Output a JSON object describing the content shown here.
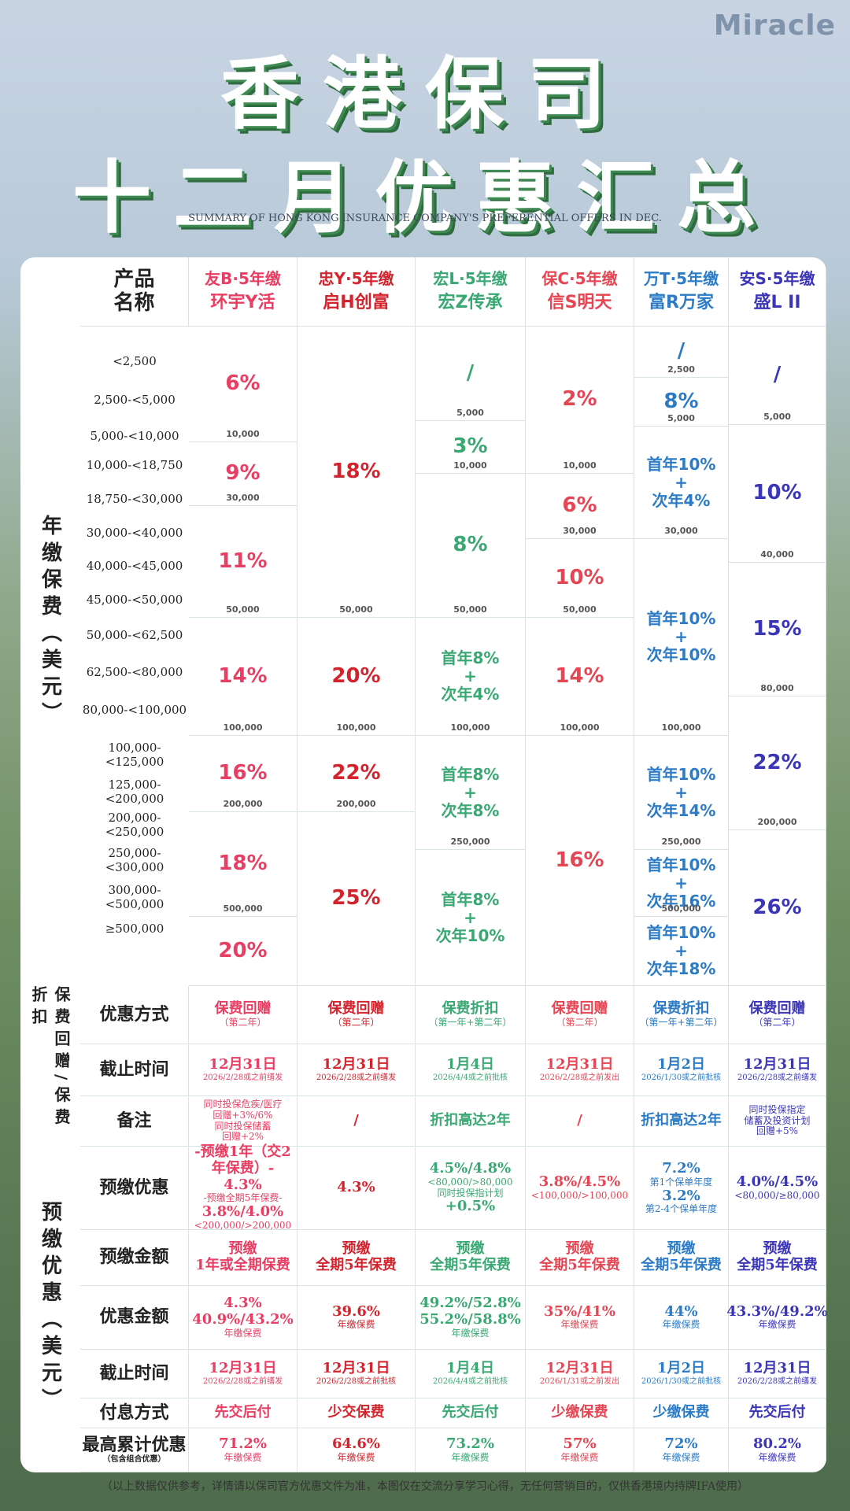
{
  "brand": "Miracle",
  "title1": "香港保司",
  "title2": "十二月优惠汇总",
  "subtitle": "SUMMARY OF HONG KONG INSURANCE COMPANY'S PREFERENTIAL OFFERS IN DEC.",
  "side": {
    "premium": "年缴保费（美元）",
    "gift": "保费回赠/保费折扣",
    "prepay": "预缴优惠（美元）"
  },
  "header": {
    "label": "产品\n名称",
    "products": [
      {
        "company": "友B·5年缴",
        "name": "环宇Y活"
      },
      {
        "company": "忠Y·5年缴",
        "name": "启H创富"
      },
      {
        "company": "宏L·5年缴",
        "name": "宏Z传承"
      },
      {
        "company": "保C·5年缴",
        "name": "信S明天"
      },
      {
        "company": "万T·5年缴",
        "name": "富R万家"
      },
      {
        "company": "安S·5年缴",
        "name": "盛L II"
      }
    ]
  },
  "ranges": [
    "<2,500",
    "2,500-<5,000",
    "5,000-<10,000",
    "10,000-<18,750",
    "18,750-<30,000",
    "30,000-<40,000",
    "40,000-<45,000",
    "45,000-<50,000",
    "50,000-<62,500",
    "62,500-<80,000",
    "80,000-<100,000",
    "100,000-<125,000",
    "125,000-<200,000",
    "200,000-<250,000",
    "250,000-<300,000",
    "300,000-<500,000",
    "≥500,000"
  ],
  "p1": {
    "a": "6%",
    "ab": "10,000",
    "b": "9%",
    "bb": "30,000",
    "c": "11%",
    "cb": "50,000",
    "d": "14%",
    "db": "100,000",
    "e": "16%",
    "eb": "200,000",
    "f": "18%",
    "fb": "500,000",
    "g": "20%"
  },
  "p2": {
    "a": "18%",
    "ab": "50,000",
    "b": "20%",
    "bb": "100,000",
    "c": "22%",
    "cb": "200,000",
    "d": "25%"
  },
  "p3": {
    "s": "/",
    "sb": "5,000",
    "a": "3%",
    "ab": "10,000",
    "b": "8%",
    "bb": "50,000",
    "c1": "首年8%",
    "c2": "+",
    "c3": "次年4%",
    "cb": "100,000",
    "d1": "首年8%",
    "d2": "+",
    "d3": "次年8%",
    "db": "250,000",
    "e1": "首年8%",
    "e2": "+",
    "e3": "次年10%"
  },
  "p4": {
    "a": "2%",
    "ab": "10,000",
    "b": "6%",
    "bb": "30,000",
    "c": "10%",
    "cb": "50,000",
    "d": "14%",
    "db": "100,000",
    "e": "16%"
  },
  "p5": {
    "s": "/",
    "sb": "2,500",
    "a": "8%",
    "ab": "5,000",
    "b1": "首年10%",
    "b2": "+",
    "b3": "次年4%",
    "bb": "30,000",
    "c1": "首年10%",
    "c2": "+",
    "c3": "次年10%",
    "cb": "100,000",
    "d1": "首年10%",
    "d2": "+",
    "d3": "次年14%",
    "db": "250,000",
    "e1": "首年10%",
    "e2": "+",
    "e3": "次年16%",
    "eb": "500,000",
    "f1": "首年10%",
    "f2": "+",
    "f3": "次年18%"
  },
  "p6": {
    "s": "/",
    "sb": "5,000",
    "a": "10%",
    "ab": "40,000",
    "b": "15%",
    "bb": "80,000",
    "c": "22%",
    "cb": "200,000",
    "d": "26%"
  },
  "rows": {
    "method": {
      "label": "优惠方式",
      "v": [
        [
          "保费回赠",
          "（第二年）"
        ],
        [
          "保费回赠",
          "（第二年）"
        ],
        [
          "保费折扣",
          "（第一年+第二年）"
        ],
        [
          "保费回赠",
          "（第二年）"
        ],
        [
          "保费折扣",
          "（第一年+第二年）"
        ],
        [
          "保费回赠",
          "（第二年）"
        ]
      ]
    },
    "deadline": {
      "label": "截止时间",
      "v": [
        [
          "12月31日",
          "2026/2/28或之前缮发"
        ],
        [
          "12月31日",
          "2026/2/28或之前缮发"
        ],
        [
          "1月4日",
          "2026/4/4或之前批核"
        ],
        [
          "12月31日",
          "2026/2/28或之前发出"
        ],
        [
          "1月2日",
          "2026/1/30或之前批核"
        ],
        [
          "12月31日",
          "2026/2/28或之前缮发"
        ]
      ]
    },
    "note": {
      "label": "备注",
      "v": [
        [
          "同时投保危疾/医疗",
          "回赠+3%/6%",
          "同时投保储蓄",
          "回赠+2%"
        ],
        [
          "/"
        ],
        [
          "折扣高达2年"
        ],
        [
          "/"
        ],
        [
          "折扣高达2年"
        ],
        [
          "同时投保指定",
          "储蓄及投资计划",
          "回赠+5%"
        ]
      ]
    },
    "prepay": {
      "label": "预缴优惠",
      "v": [
        [
          "-预缴1年（交2年保费）-",
          "4.3%",
          "-预缴全期5年保费-",
          "3.8%/4.0%",
          "<200,000/>200,000"
        ],
        [
          "4.3%"
        ],
        [
          "4.5%/4.8%",
          "<80,000/>80,000",
          "同时投保指计划",
          "+0.5%"
        ],
        [
          "3.8%/4.5%",
          "<100,000/>100,000"
        ],
        [
          "7.2%",
          "第1个保单年度",
          "3.2%",
          "第2-4个保单年度"
        ],
        [
          "4.0%/4.5%",
          "<80,000/≥80,000"
        ]
      ]
    },
    "amount": {
      "label": "预缴金额",
      "v": [
        [
          "预缴",
          "1年或全期保费"
        ],
        [
          "预缴",
          "全期5年保费"
        ],
        [
          "预缴",
          "全期5年保费"
        ],
        [
          "预缴",
          "全期5年保费"
        ],
        [
          "预缴",
          "全期5年保费"
        ],
        [
          "预缴",
          "全期5年保费"
        ]
      ]
    },
    "discount": {
      "label": "优惠金额",
      "v": [
        [
          "4.3%",
          "40.9%/43.2%",
          "年缴保费"
        ],
        [
          "39.6%",
          "年缴保费"
        ],
        [
          "49.2%/52.8%",
          "55.2%/58.8%",
          "年缴保费"
        ],
        [
          "35%/41%",
          "年缴保费"
        ],
        [
          "44%",
          "年缴保费"
        ],
        [
          "43.3%/49.2%",
          "年缴保费"
        ]
      ]
    },
    "deadline2": {
      "label": "截止时间",
      "v": [
        [
          "12月31日",
          "2026/2/28或之前缮发"
        ],
        [
          "12月31日",
          "2026/2/28或之前批核"
        ],
        [
          "1月4日",
          "2026/4/4或之前批核"
        ],
        [
          "12月31日",
          "2026/1/31或之前发出"
        ],
        [
          "1月2日",
          "2026/1/30或之前批核"
        ],
        [
          "12月31日",
          "2026/2/28或之前缮发"
        ]
      ]
    },
    "payment": {
      "label": "付息方式",
      "v": [
        "先交后付",
        "少交保费",
        "先交后付",
        "少缴保费",
        "少缴保费",
        "先交后付"
      ]
    },
    "max": {
      "label": "最高累计优惠",
      "sub": "（包含组合优惠）",
      "v": [
        [
          "71.2%",
          "年缴保费"
        ],
        [
          "64.6%",
          "年缴保费"
        ],
        [
          "73.2%",
          "年缴保费"
        ],
        [
          "57%",
          "年缴保费"
        ],
        [
          "72%",
          "年缴保费"
        ],
        [
          "80.2%",
          "年缴保费"
        ]
      ]
    }
  },
  "footer": "（以上数据仅供参考，详情请以保司官方优惠文件为准，本图仅在交流分享学习心得，无任何营销目的，仅供香港境内持牌IFA使用）",
  "colors": {
    "p1": "#e83e63",
    "p2": "#d3232c",
    "p3": "#3aa873",
    "p4": "#e64553",
    "p5": "#2b7bc6",
    "p6": "#3b36b8"
  }
}
